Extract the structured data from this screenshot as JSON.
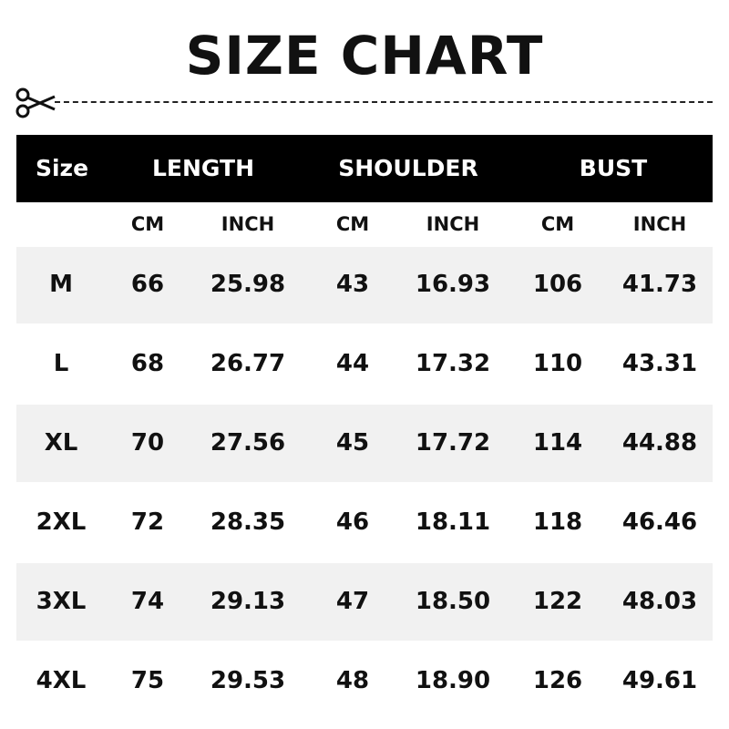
{
  "title": "SIZE CHART",
  "header": {
    "size": "Size",
    "groups": [
      "LENGTH",
      "SHOULDER",
      "BUST"
    ]
  },
  "subheader": [
    "CM",
    "INCH",
    "CM",
    "INCH",
    "CM",
    "INCH"
  ],
  "rows": [
    [
      "M",
      "66",
      "25.98",
      "43",
      "16.93",
      "106",
      "41.73"
    ],
    [
      "L",
      "68",
      "26.77",
      "44",
      "17.32",
      "110",
      "43.31"
    ],
    [
      "XL",
      "70",
      "27.56",
      "45",
      "17.72",
      "114",
      "44.88"
    ],
    [
      "2XL",
      "72",
      "28.35",
      "46",
      "18.11",
      "118",
      "46.46"
    ],
    [
      "3XL",
      "74",
      "29.13",
      "47",
      "18.50",
      "122",
      "48.03"
    ],
    [
      "4XL",
      "75",
      "29.53",
      "48",
      "18.90",
      "126",
      "49.61"
    ]
  ],
  "colors": {
    "header_bg": "#000000",
    "stripe": "#f1f1f1"
  },
  "icons": {
    "cut": "scissors-icon"
  }
}
